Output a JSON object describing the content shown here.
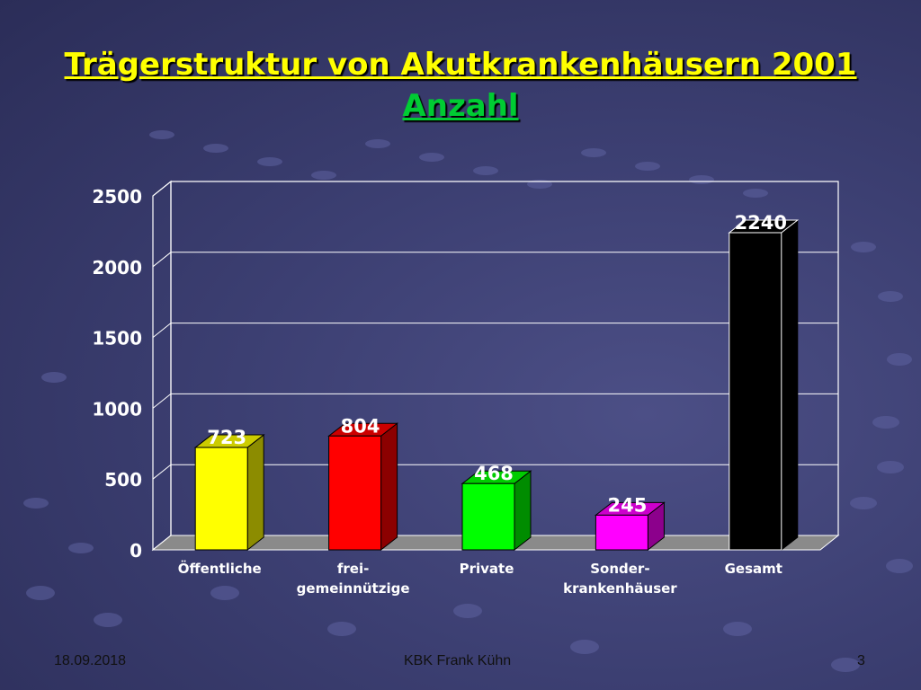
{
  "slide": {
    "title": "Trägerstruktur von Akutkrankenhäusern 2001",
    "subtitle": "Anzahl",
    "footer_date": "18.09.2018",
    "footer_author": "KBK Frank Kühn",
    "footer_page": "3"
  },
  "chart_data": {
    "type": "bar",
    "title": "Trägerstruktur von Akutkrankenhäusern 2001",
    "subtitle": "Anzahl",
    "xlabel": "",
    "ylabel": "",
    "categories": [
      [
        "Öffentliche"
      ],
      [
        "frei-",
        "gemeinnützige"
      ],
      [
        "Private"
      ],
      [
        "Sonder-",
        "krankenhäuser"
      ],
      [
        "Gesamt"
      ]
    ],
    "values": [
      723,
      804,
      468,
      245,
      2240
    ],
    "data_labels": [
      "723",
      "804",
      "468",
      "245",
      "2240"
    ],
    "colors": [
      "#ffff00",
      "#ff0000",
      "#00ff00",
      "#ff00ff",
      "#000000"
    ],
    "ylim": [
      0,
      2500
    ],
    "yticks": [
      0,
      500,
      1000,
      1500,
      2000,
      2500
    ],
    "grid": true,
    "legend": "none",
    "style": "3d"
  }
}
